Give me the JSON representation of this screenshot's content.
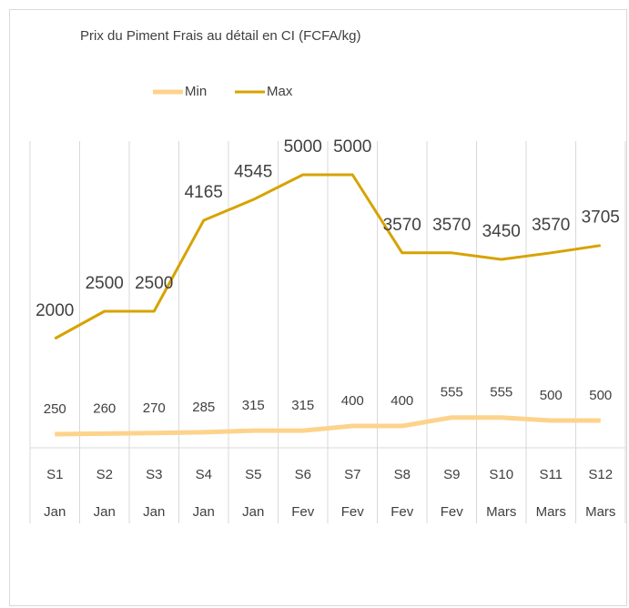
{
  "chart_data": {
    "type": "line",
    "title": "Prix du Piment Frais au détail en CI (FCFA/kg)",
    "categories": [
      "S1",
      "S2",
      "S3",
      "S4",
      "S5",
      "S6",
      "S7",
      "S8",
      "S9",
      "S10",
      "S11",
      "S12"
    ],
    "months": [
      "Jan",
      "Jan",
      "Jan",
      "Jan",
      "Jan",
      "Fev",
      "Fev",
      "Fev",
      "Fev",
      "Mars",
      "Mars",
      "Mars"
    ],
    "series": [
      {
        "name": "Min",
        "color": "#fdd38c",
        "values": [
          250,
          260,
          270,
          285,
          315,
          315,
          400,
          400,
          555,
          555,
          500,
          500
        ]
      },
      {
        "name": "Max",
        "color": "#d6a300",
        "values": [
          2000,
          2500,
          2500,
          4165,
          4545,
          5000,
          5000,
          3570,
          3570,
          3450,
          3570,
          3705
        ]
      }
    ],
    "ylim": [
      0,
      6000
    ],
    "grid": true,
    "legend": "top"
  }
}
